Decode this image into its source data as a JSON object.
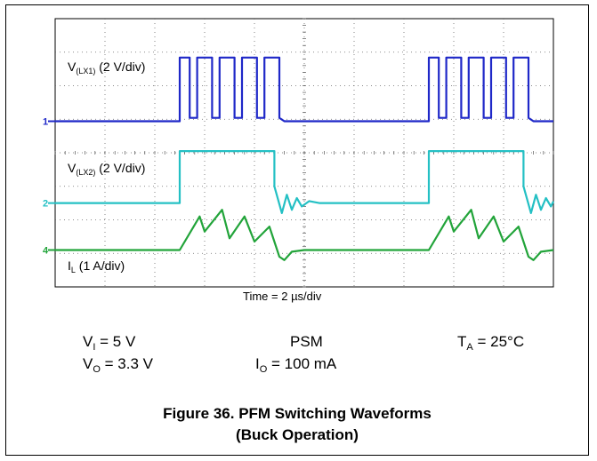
{
  "chart_data": {
    "type": "line",
    "title": "",
    "xlabel": "Time = 2 µs/div",
    "xlim": [
      0,
      20
    ],
    "x_unit": "µs",
    "x_divisions": 10,
    "y_divisions": 8,
    "grid": true,
    "series": [
      {
        "name": "V(LX1) (2 V/div)",
        "label": {
          "main": "V",
          "sub": "(LX1)",
          "rest": " (2 V/div)"
        },
        "channel_marker": "1",
        "color": "#1f28c8",
        "scale": "2 V/div",
        "points": [
          [
            0,
            0
          ],
          [
            5.0,
            0
          ],
          [
            5.0,
            1.9
          ],
          [
            5.4,
            1.9
          ],
          [
            5.4,
            0.1
          ],
          [
            5.7,
            0.1
          ],
          [
            5.7,
            1.9
          ],
          [
            6.3,
            1.9
          ],
          [
            6.3,
            0.1
          ],
          [
            6.6,
            0.1
          ],
          [
            6.6,
            1.9
          ],
          [
            7.2,
            1.9
          ],
          [
            7.2,
            0.1
          ],
          [
            7.5,
            0.1
          ],
          [
            7.5,
            1.9
          ],
          [
            8.1,
            1.9
          ],
          [
            8.1,
            0.1
          ],
          [
            8.4,
            0.1
          ],
          [
            8.4,
            1.9
          ],
          [
            9.0,
            1.9
          ],
          [
            9.0,
            0.1
          ],
          [
            9.2,
            0
          ],
          [
            15.0,
            0
          ],
          [
            15.0,
            1.9
          ],
          [
            15.4,
            1.9
          ],
          [
            15.4,
            0.1
          ],
          [
            15.7,
            0.1
          ],
          [
            15.7,
            1.9
          ],
          [
            16.3,
            1.9
          ],
          [
            16.3,
            0.1
          ],
          [
            16.6,
            0.1
          ],
          [
            16.6,
            1.9
          ],
          [
            17.2,
            1.9
          ],
          [
            17.2,
            0.1
          ],
          [
            17.5,
            0.1
          ],
          [
            17.5,
            1.9
          ],
          [
            18.1,
            1.9
          ],
          [
            18.1,
            0.1
          ],
          [
            18.4,
            0.1
          ],
          [
            18.4,
            1.9
          ],
          [
            19.0,
            1.9
          ],
          [
            19.0,
            0.1
          ],
          [
            19.2,
            0
          ],
          [
            20.0,
            0
          ]
        ]
      },
      {
        "name": "V(LX2) (2 V/div)",
        "label": {
          "main": "V",
          "sub": "(LX2)",
          "rest": " (2 V/div)"
        },
        "channel_marker": "2",
        "color": "#24c0c4",
        "scale": "2 V/div",
        "points": [
          [
            0,
            0
          ],
          [
            5.0,
            0
          ],
          [
            5.0,
            1.55
          ],
          [
            8.8,
            1.55
          ],
          [
            8.8,
            0.5
          ],
          [
            9.1,
            -0.3
          ],
          [
            9.3,
            0.25
          ],
          [
            9.5,
            -0.2
          ],
          [
            9.7,
            0.15
          ],
          [
            9.9,
            -0.1
          ],
          [
            10.2,
            0.06
          ],
          [
            10.6,
            0
          ],
          [
            15.0,
            0
          ],
          [
            15.0,
            1.55
          ],
          [
            18.8,
            1.55
          ],
          [
            18.8,
            0.5
          ],
          [
            19.1,
            -0.3
          ],
          [
            19.3,
            0.25
          ],
          [
            19.5,
            -0.2
          ],
          [
            19.7,
            0.15
          ],
          [
            19.9,
            -0.1
          ],
          [
            20.0,
            0.05
          ]
        ]
      },
      {
        "name": "IL (1 A/div)",
        "label": {
          "main": "I",
          "sub": "L",
          "rest": " (1 A/div)"
        },
        "channel_marker": "4",
        "color": "#22a43a",
        "scale": "1 A/div",
        "points": [
          [
            0,
            0
          ],
          [
            5.0,
            0
          ],
          [
            5.8,
            1.0
          ],
          [
            6.0,
            0.55
          ],
          [
            6.7,
            1.2
          ],
          [
            7.0,
            0.35
          ],
          [
            7.6,
            1.0
          ],
          [
            8.0,
            0.25
          ],
          [
            8.6,
            0.7
          ],
          [
            9.0,
            -0.2
          ],
          [
            9.2,
            -0.3
          ],
          [
            9.5,
            -0.05
          ],
          [
            10.0,
            0
          ],
          [
            15.0,
            0
          ],
          [
            15.8,
            1.0
          ],
          [
            16.0,
            0.55
          ],
          [
            16.7,
            1.2
          ],
          [
            17.0,
            0.35
          ],
          [
            17.6,
            1.0
          ],
          [
            18.0,
            0.25
          ],
          [
            18.6,
            0.7
          ],
          [
            19.0,
            -0.2
          ],
          [
            19.2,
            -0.3
          ],
          [
            19.5,
            -0.05
          ],
          [
            20.0,
            0
          ]
        ]
      }
    ]
  },
  "conditions": {
    "vi": {
      "main": "V",
      "sub": "I",
      "rest": " = 5 V"
    },
    "vo": {
      "main": "V",
      "sub": "O",
      "rest": " = 3.3 V"
    },
    "mode": "PSM",
    "io": {
      "main": "I",
      "sub": "O",
      "rest": " = 100 mA"
    },
    "ta": {
      "main": "T",
      "sub": "A",
      "rest": " = 25°C"
    }
  },
  "caption": {
    "line1": "Figure 36. PFM Switching Waveforms",
    "line2": "(Buck Operation)"
  }
}
